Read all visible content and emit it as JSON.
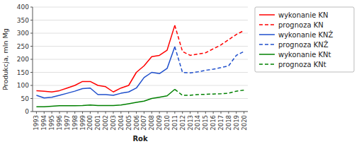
{
  "chart_data": {
    "type": "line",
    "xlabel": "Rok",
    "ylabel": "Produkcja, mln Mg",
    "xlim": [
      1992.5,
      2020.5
    ],
    "xticks": [
      1993,
      1994,
      1995,
      1996,
      1997,
      1998,
      1999,
      2000,
      2001,
      2002,
      2003,
      2004,
      2005,
      2006,
      2007,
      2008,
      2009,
      2010,
      2011,
      2012,
      2013,
      2014,
      2015,
      2016,
      2017,
      2018,
      2019,
      2020
    ],
    "ylim": [
      0,
      400
    ],
    "yticks": [
      0,
      50,
      100,
      150,
      200,
      250,
      300,
      350,
      400
    ],
    "grid": true,
    "legend": "upper right",
    "series": [
      {
        "name": "wykonanie KN",
        "color": "#ff0000",
        "line_style": "solid",
        "x": [
          1993,
          1994,
          1995,
          1996,
          1997,
          1998,
          1999,
          2000,
          2001,
          2002,
          2003,
          2004,
          2005,
          2006,
          2007,
          2008,
          2009,
          2010,
          2011
        ],
        "values": [
          80,
          78,
          75,
          80,
          90,
          100,
          115,
          115,
          100,
          95,
          75,
          90,
          100,
          150,
          175,
          210,
          215,
          235,
          330
        ]
      },
      {
        "name": "prognoza KN",
        "color": "#ff0000",
        "line_style": "dashed",
        "x": [
          2011,
          2012,
          2013,
          2014,
          2015,
          2016,
          2017,
          2018,
          2019,
          2020
        ],
        "values": [
          330,
          230,
          215,
          220,
          225,
          240,
          255,
          275,
          295,
          310
        ]
      },
      {
        "name": "wykonanie KNŻ",
        "color": "#1f4fcc",
        "line_style": "solid",
        "x": [
          1993,
          1994,
          1995,
          1996,
          1997,
          1998,
          1999,
          2000,
          2001,
          2002,
          2003,
          2004,
          2005,
          2006,
          2007,
          2008,
          2009,
          2010,
          2011
        ],
        "values": [
          62,
          52,
          55,
          62,
          70,
          78,
          88,
          90,
          65,
          65,
          62,
          70,
          75,
          90,
          130,
          150,
          145,
          165,
          248
        ]
      },
      {
        "name": "prognoza KNŻ",
        "color": "#1f4fcc",
        "line_style": "dashed",
        "x": [
          2011,
          2012,
          2013,
          2014,
          2015,
          2016,
          2017,
          2018,
          2019,
          2020
        ],
        "values": [
          248,
          150,
          148,
          152,
          158,
          162,
          168,
          175,
          215,
          230
        ]
      },
      {
        "name": "wykonanie KNt",
        "color": "#008000",
        "line_style": "solid",
        "x": [
          1993,
          1994,
          1995,
          1996,
          1997,
          1998,
          1999,
          2000,
          2001,
          2002,
          2003,
          2004,
          2005,
          2006,
          2007,
          2008,
          2009,
          2010,
          2011
        ],
        "values": [
          18,
          18,
          20,
          22,
          22,
          22,
          23,
          25,
          23,
          23,
          23,
          25,
          30,
          35,
          40,
          50,
          55,
          60,
          85
        ]
      },
      {
        "name": "prognoza KNt",
        "color": "#008000",
        "line_style": "dashed",
        "x": [
          2011,
          2012,
          2013,
          2014,
          2015,
          2016,
          2017,
          2018,
          2019,
          2020
        ],
        "values": [
          85,
          62,
          62,
          65,
          66,
          67,
          68,
          70,
          78,
          82
        ]
      }
    ]
  }
}
